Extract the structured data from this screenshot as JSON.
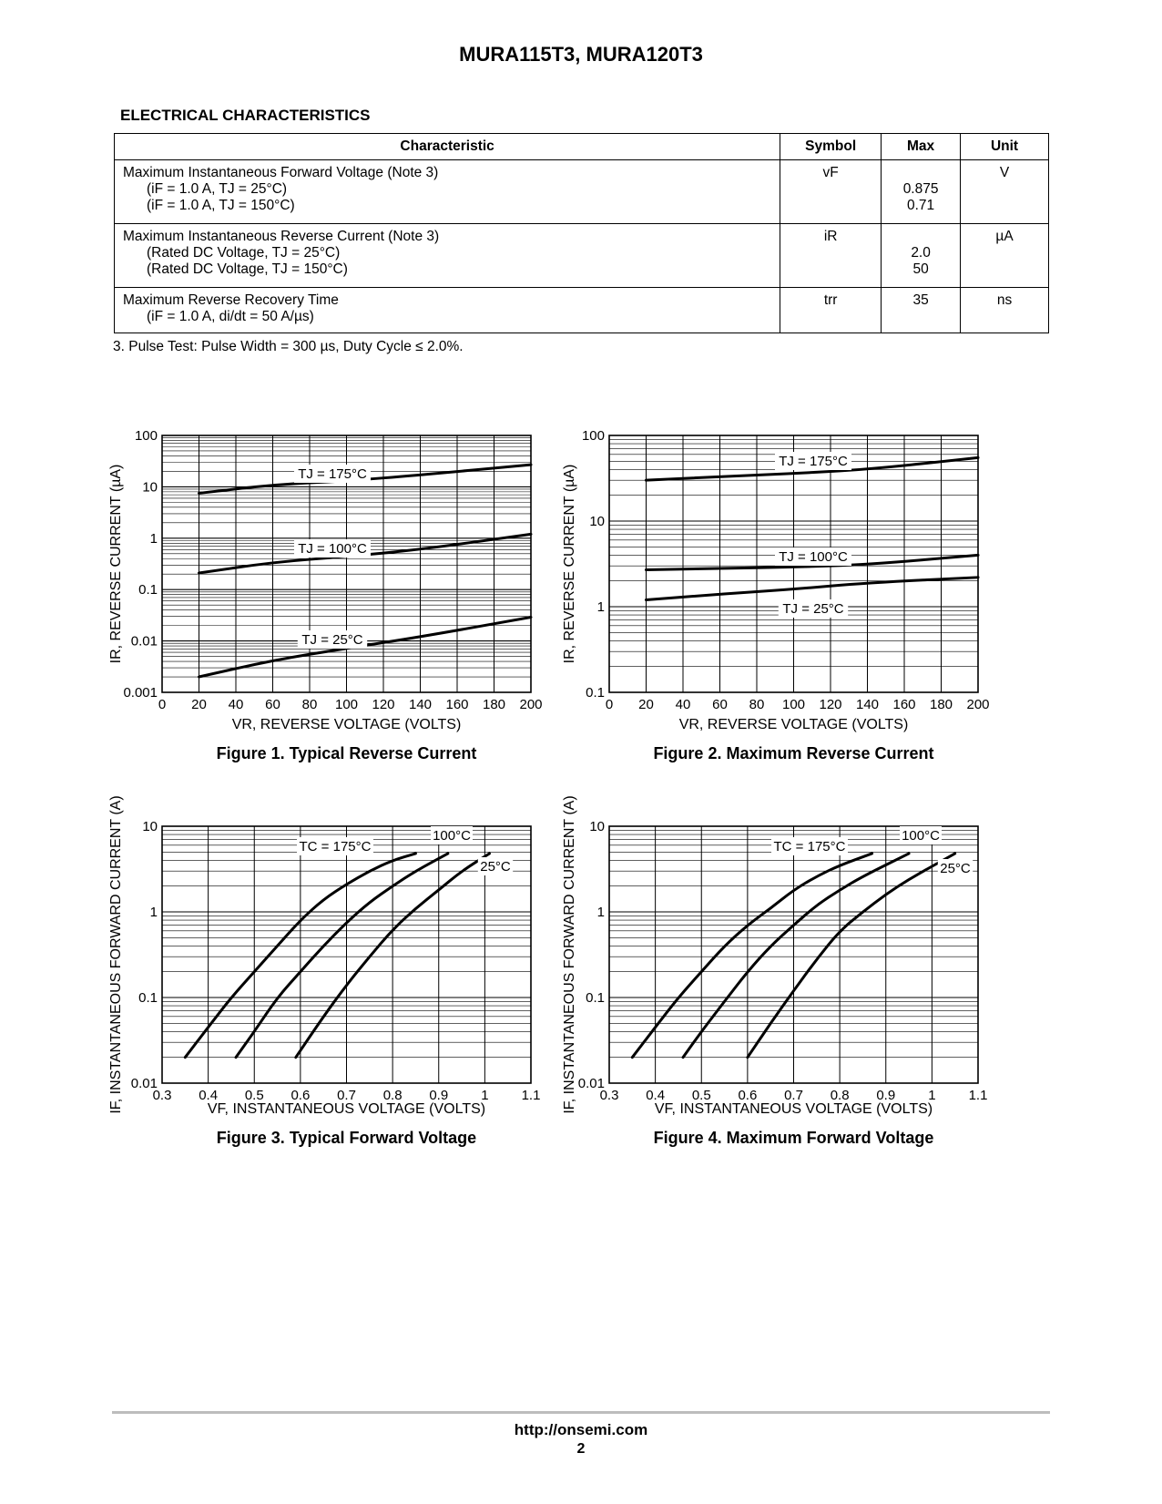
{
  "header": {
    "title": "MURA115T3, MURA120T3"
  },
  "section": {
    "title": "ELECTRICAL CHARACTERISTICS"
  },
  "table": {
    "headers": [
      "Characteristic",
      "Symbol",
      "Max",
      "Unit"
    ],
    "rows": [
      {
        "main": "Maximum Instantaneous Forward Voltage (Note 3)",
        "sub1": "(iF = 1.0 A, TJ = 25°C)",
        "sub2": "(iF = 1.0 A, TJ = 150°C)",
        "symbol": "vF",
        "max1": "0.875",
        "max2": "0.71",
        "unit": "V"
      },
      {
        "main": "Maximum Instantaneous Reverse Current (Note 3)",
        "sub1": "(Rated DC Voltage, TJ = 25°C)",
        "sub2": "(Rated DC Voltage, TJ = 150°C)",
        "symbol": "iR",
        "max1": "2.0",
        "max2": "50",
        "unit": "µA"
      },
      {
        "main": "Maximum Reverse Recovery Time",
        "sub1": "(iF = 1.0 A, di/dt = 50 A/µs)",
        "symbol": "trr",
        "max1": "35",
        "unit": "ns"
      }
    ]
  },
  "note": "3.  Pulse Test: Pulse Width = 300 µs, Duty Cycle ≤ 2.0%.",
  "chart_data": [
    {
      "type": "line",
      "title": "Figure 1. Typical Reverse Current",
      "xlabel": "VR, REVERSE VOLTAGE (VOLTS)",
      "ylabel": "IR, REVERSE CURRENT (µA)",
      "xlim": [
        0,
        200
      ],
      "ylim": [
        0.001,
        100
      ],
      "ylog": true,
      "grid": true,
      "xticks": [
        "0",
        "20",
        "40",
        "60",
        "80",
        "100",
        "120",
        "140",
        "160",
        "180",
        "200"
      ],
      "yticks": [
        "0.001",
        "0.01",
        "0.1",
        "1",
        "10",
        "100"
      ],
      "series": [
        {
          "name": "TJ = 175°C",
          "x": [
            20,
            60,
            100,
            140,
            200
          ],
          "y": [
            7.5,
            11,
            13,
            17,
            27
          ]
        },
        {
          "name": "TJ = 100°C",
          "x": [
            20,
            60,
            100,
            140,
            200
          ],
          "y": [
            0.21,
            0.34,
            0.44,
            0.6,
            1.2
          ]
        },
        {
          "name": "TJ = 25°C",
          "x": [
            20,
            60,
            100,
            140,
            200
          ],
          "y": [
            0.002,
            0.0042,
            0.0072,
            0.012,
            0.029
          ]
        }
      ]
    },
    {
      "type": "line",
      "title": "Figure 2. Maximum Reverse Current",
      "xlabel": "VR, REVERSE VOLTAGE (VOLTS)",
      "ylabel": "IR, REVERSE CURRENT (µA)",
      "xlim": [
        0,
        200
      ],
      "ylim": [
        0.1,
        100
      ],
      "ylog": true,
      "grid": true,
      "xticks": [
        "0",
        "20",
        "40",
        "60",
        "80",
        "100",
        "120",
        "140",
        "160",
        "180",
        "200"
      ],
      "yticks": [
        "0.1",
        "1",
        "10",
        "100"
      ],
      "series": [
        {
          "name": "TJ = 175°C",
          "x": [
            20,
            60,
            100,
            140,
            200
          ],
          "y": [
            30,
            33,
            36,
            40,
            55
          ]
        },
        {
          "name": "TJ = 100°C",
          "x": [
            20,
            60,
            100,
            140,
            200
          ],
          "y": [
            2.7,
            2.8,
            2.9,
            3.1,
            4.0
          ]
        },
        {
          "name": "TJ = 25°C",
          "x": [
            20,
            60,
            100,
            140,
            200
          ],
          "y": [
            1.2,
            1.4,
            1.6,
            1.9,
            2.2
          ]
        }
      ]
    },
    {
      "type": "line",
      "title": "Figure 3. Typical Forward Voltage",
      "xlabel": "VF, INSTANTANEOUS VOLTAGE (VOLTS)",
      "ylabel": "IF, INSTANTANEOUS FORWARD CURRENT (A)",
      "xlim": [
        0.3,
        1.1
      ],
      "ylim": [
        0.01,
        10
      ],
      "ylog": true,
      "grid": true,
      "xticks": [
        "0.3",
        "0.4",
        "0.5",
        "0.6",
        "0.7",
        "0.8",
        "0.9",
        "1",
        "1.1"
      ],
      "yticks": [
        "0.01",
        "0.1",
        "1",
        "10"
      ],
      "series": [
        {
          "name": "TC = 175°C",
          "x": [
            0.35,
            0.4,
            0.45,
            0.5,
            0.55,
            0.6,
            0.65,
            0.7,
            0.75,
            0.8,
            0.85
          ],
          "y": [
            0.02,
            0.045,
            0.1,
            0.2,
            0.4,
            0.8,
            1.4,
            2.1,
            3.0,
            4.0,
            4.8
          ]
        },
        {
          "name": "100°C",
          "x": [
            0.46,
            0.5,
            0.55,
            0.6,
            0.65,
            0.7,
            0.75,
            0.8,
            0.85,
            0.92
          ],
          "y": [
            0.02,
            0.04,
            0.1,
            0.2,
            0.4,
            0.75,
            1.3,
            2.0,
            3.0,
            4.8
          ]
        },
        {
          "name": "25°C",
          "x": [
            0.59,
            0.65,
            0.7,
            0.75,
            0.8,
            0.85,
            0.9,
            0.95,
            1.01
          ],
          "y": [
            0.02,
            0.06,
            0.14,
            0.3,
            0.62,
            1.1,
            1.8,
            3.0,
            4.8
          ]
        }
      ]
    },
    {
      "type": "line",
      "title": "Figure 4. Maximum Forward Voltage",
      "xlabel": "VF, INSTANTANEOUS VOLTAGE (VOLTS)",
      "ylabel": "IF, INSTANTANEOUS FORWARD CURRENT (A)",
      "xlim": [
        0.3,
        1.1
      ],
      "ylim": [
        0.01,
        10
      ],
      "ylog": true,
      "grid": true,
      "xticks": [
        "0.3",
        "0.4",
        "0.5",
        "0.6",
        "0.7",
        "0.8",
        "0.9",
        "1",
        "1.1"
      ],
      "yticks": [
        "0.01",
        "0.1",
        "1",
        "10"
      ],
      "series": [
        {
          "name": "TC = 175°C",
          "x": [
            0.35,
            0.4,
            0.45,
            0.5,
            0.55,
            0.6,
            0.65,
            0.7,
            0.75,
            0.8,
            0.87
          ],
          "y": [
            0.02,
            0.045,
            0.1,
            0.2,
            0.4,
            0.7,
            1.1,
            1.8,
            2.6,
            3.5,
            4.8
          ]
        },
        {
          "name": "100°C",
          "x": [
            0.46,
            0.5,
            0.55,
            0.6,
            0.65,
            0.7,
            0.75,
            0.8,
            0.85,
            0.95
          ],
          "y": [
            0.02,
            0.04,
            0.09,
            0.2,
            0.4,
            0.7,
            1.2,
            1.8,
            2.6,
            4.8
          ]
        },
        {
          "name": "25°C",
          "x": [
            0.6,
            0.65,
            0.7,
            0.75,
            0.8,
            0.85,
            0.9,
            0.95,
            1.0,
            1.05
          ],
          "y": [
            0.02,
            0.05,
            0.12,
            0.28,
            0.6,
            1.0,
            1.6,
            2.4,
            3.4,
            4.8
          ]
        }
      ]
    }
  ],
  "footer": {
    "url": "http://onsemi.com",
    "page": "2"
  }
}
